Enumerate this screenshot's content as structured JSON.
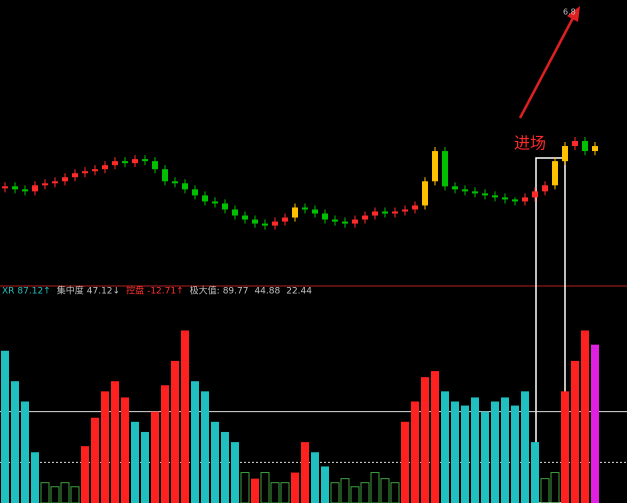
{
  "chart_data": [
    {
      "type": "candlestick",
      "open": [
        93,
        95,
        92,
        90,
        96,
        98,
        100,
        104,
        108,
        110,
        112,
        116,
        120,
        118,
        122,
        120,
        112,
        100,
        98,
        92,
        86,
        80,
        78,
        72,
        66,
        62,
        58,
        56,
        60,
        64,
        74,
        72,
        68,
        62,
        60,
        58,
        62,
        66,
        70,
        68,
        70,
        72,
        76,
        100,
        130,
        95,
        92,
        90,
        88,
        86,
        84,
        82,
        80,
        84,
        90,
        96,
        120,
        135,
        140,
        130
      ],
      "high": [
        99,
        99,
        96,
        100,
        102,
        104,
        108,
        112,
        114,
        116,
        120,
        124,
        124,
        126,
        126,
        124,
        116,
        104,
        102,
        96,
        90,
        84,
        82,
        76,
        70,
        66,
        62,
        64,
        68,
        78,
        78,
        76,
        72,
        66,
        64,
        66,
        70,
        74,
        74,
        74,
        76,
        80,
        104,
        134,
        134,
        99,
        96,
        94,
        92,
        90,
        88,
        84,
        88,
        94,
        100,
        124,
        139,
        144,
        144,
        139
      ],
      "low": [
        89,
        88,
        86,
        86,
        92,
        94,
        96,
        100,
        104,
        106,
        108,
        112,
        114,
        114,
        116,
        108,
        96,
        94,
        88,
        82,
        76,
        74,
        68,
        62,
        58,
        54,
        52,
        52,
        56,
        60,
        68,
        64,
        58,
        56,
        54,
        54,
        58,
        62,
        64,
        64,
        66,
        68,
        72,
        96,
        91,
        88,
        86,
        84,
        82,
        80,
        78,
        76,
        76,
        80,
        86,
        92,
        116,
        131,
        126,
        126
      ],
      "close": [
        95,
        92,
        90,
        96,
        98,
        100,
        104,
        108,
        110,
        112,
        116,
        120,
        118,
        122,
        120,
        112,
        100,
        98,
        92,
        86,
        80,
        78,
        72,
        66,
        62,
        58,
        56,
        60,
        64,
        74,
        72,
        68,
        62,
        60,
        58,
        62,
        66,
        70,
        68,
        70,
        72,
        76,
        100,
        130,
        95,
        92,
        90,
        88,
        86,
        84,
        82,
        80,
        84,
        90,
        96,
        120,
        135,
        140,
        130,
        135
      ],
      "up_color": "#ff2a2a",
      "down_color": "#00c000",
      "highlight_color": "#ffc000",
      "highlight": [
        29,
        42,
        43,
        55,
        56,
        59
      ],
      "ylim": [
        0,
        280
      ]
    },
    {
      "type": "bar",
      "values": [
        75,
        60,
        50,
        25,
        10,
        8,
        10,
        8,
        28,
        42,
        55,
        60,
        52,
        40,
        35,
        45,
        58,
        70,
        85,
        60,
        55,
        40,
        35,
        30,
        15,
        12,
        15,
        10,
        10,
        15,
        30,
        25,
        18,
        10,
        12,
        8,
        10,
        15,
        12,
        10,
        40,
        50,
        62,
        65,
        55,
        50,
        48,
        52,
        45,
        50,
        52,
        48,
        55,
        30,
        12,
        15,
        55,
        70,
        85,
        78
      ],
      "colors": [
        "#20c0c0",
        "#20c0c0",
        "#20c0c0",
        "#20c0c0",
        "#40a040",
        "#40a040",
        "#40a040",
        "#40a040",
        "#ff2020",
        "#ff2020",
        "#ff2020",
        "#ff2020",
        "#ff2020",
        "#20c0c0",
        "#20c0c0",
        "#ff2020",
        "#ff2020",
        "#ff2020",
        "#ff2020",
        "#20c0c0",
        "#20c0c0",
        "#20c0c0",
        "#20c0c0",
        "#20c0c0",
        "#40a040",
        "#ff2020",
        "#40a040",
        "#40a040",
        "#40a040",
        "#ff2020",
        "#ff2020",
        "#20c0c0",
        "#20c0c0",
        "#40a040",
        "#40a040",
        "#40a040",
        "#40a040",
        "#40a040",
        "#40a040",
        "#40a040",
        "#ff2020",
        "#ff2020",
        "#ff2020",
        "#ff2020",
        "#20c0c0",
        "#20c0c0",
        "#20c0c0",
        "#20c0c0",
        "#20c0c0",
        "#20c0c0",
        "#20c0c0",
        "#20c0c0",
        "#20c0c0",
        "#20c0c0",
        "#40a040",
        "#40a040",
        "#ff2020",
        "#ff2020",
        "#ff2020",
        "#e020e0"
      ],
      "reference_lines": [
        45,
        20
      ],
      "ylim": [
        0,
        100
      ]
    }
  ],
  "legend": [
    {
      "label": "XR",
      "value": "87.12↑",
      "color": "#20c0c0"
    },
    {
      "label": "集中度",
      "value": "47.12↓",
      "color": "#c0c0c0"
    },
    {
      "label": "控盘",
      "value": "-12.71↑",
      "color": "#ff3030"
    },
    {
      "label": "极大值:",
      "value": "89.77",
      "color": "#c0c0c0"
    },
    {
      "label": "",
      "value": "44.88",
      "color": "#c0c0c0"
    },
    {
      "label": "",
      "value": "22.44",
      "color": "#c0c0c0"
    }
  ],
  "annotation": "进场",
  "peak_label": "6.8"
}
